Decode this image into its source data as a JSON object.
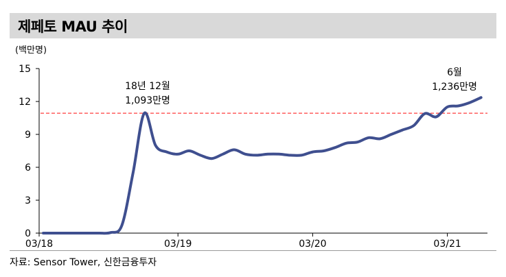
{
  "header": {
    "title": "제페토 MAU 추이"
  },
  "axis": {
    "unit_label": "(백만명)"
  },
  "source": {
    "text": "자료: Sensor Tower, 신한금융투자"
  },
  "colors": {
    "line": "#3f4f8f",
    "reference_line": "#ff3b3b",
    "title_bg": "#d9d9d9"
  },
  "annotations": [
    {
      "line1": "18년 12월",
      "line2": "1,093만명"
    },
    {
      "line1": "6월",
      "line2": "1,236만명"
    }
  ],
  "chart_data": {
    "type": "line",
    "title": "제페토 MAU 추이",
    "xlabel": "",
    "ylabel": "(백만명)",
    "ylim": [
      0,
      15
    ],
    "yticks": [
      0,
      3,
      6,
      9,
      12,
      15
    ],
    "xticks": [
      "03/18",
      "03/19",
      "03/20",
      "03/21"
    ],
    "grid": false,
    "legend": null,
    "reference_line": {
      "y": 10.93,
      "style": "dashed",
      "color": "#ff3b3b"
    },
    "x": [
      "03/18",
      "04/18",
      "05/18",
      "06/18",
      "07/18",
      "08/18",
      "09/18",
      "10/18",
      "11/18",
      "12/18",
      "01/19",
      "02/19",
      "03/19",
      "04/19",
      "05/19",
      "06/19",
      "07/19",
      "08/19",
      "09/19",
      "10/19",
      "11/19",
      "12/19",
      "01/20",
      "02/20",
      "03/20",
      "04/20",
      "05/20",
      "06/20",
      "07/20",
      "08/20",
      "09/20",
      "10/20",
      "11/20",
      "12/20",
      "01/21",
      "02/21",
      "03/21",
      "04/21",
      "05/21",
      "06/21"
    ],
    "series": [
      {
        "name": "MAU (백만명)",
        "values": [
          0.0,
          0.0,
          0.0,
          0.0,
          0.0,
          0.0,
          0.05,
          0.7,
          5.5,
          10.93,
          8.0,
          7.4,
          7.2,
          7.5,
          7.1,
          6.8,
          7.2,
          7.6,
          7.2,
          7.1,
          7.2,
          7.2,
          7.1,
          7.1,
          7.4,
          7.5,
          7.8,
          8.2,
          8.3,
          8.7,
          8.6,
          9.0,
          9.4,
          9.8,
          10.9,
          10.6,
          11.5,
          11.6,
          11.9,
          12.36
        ]
      }
    ],
    "annotations": [
      {
        "x": "12/18",
        "y": 10.93,
        "text": "18년 12월 1,093만명"
      },
      {
        "x": "06/21",
        "y": 12.36,
        "text": "6월 1,236만명"
      }
    ]
  }
}
